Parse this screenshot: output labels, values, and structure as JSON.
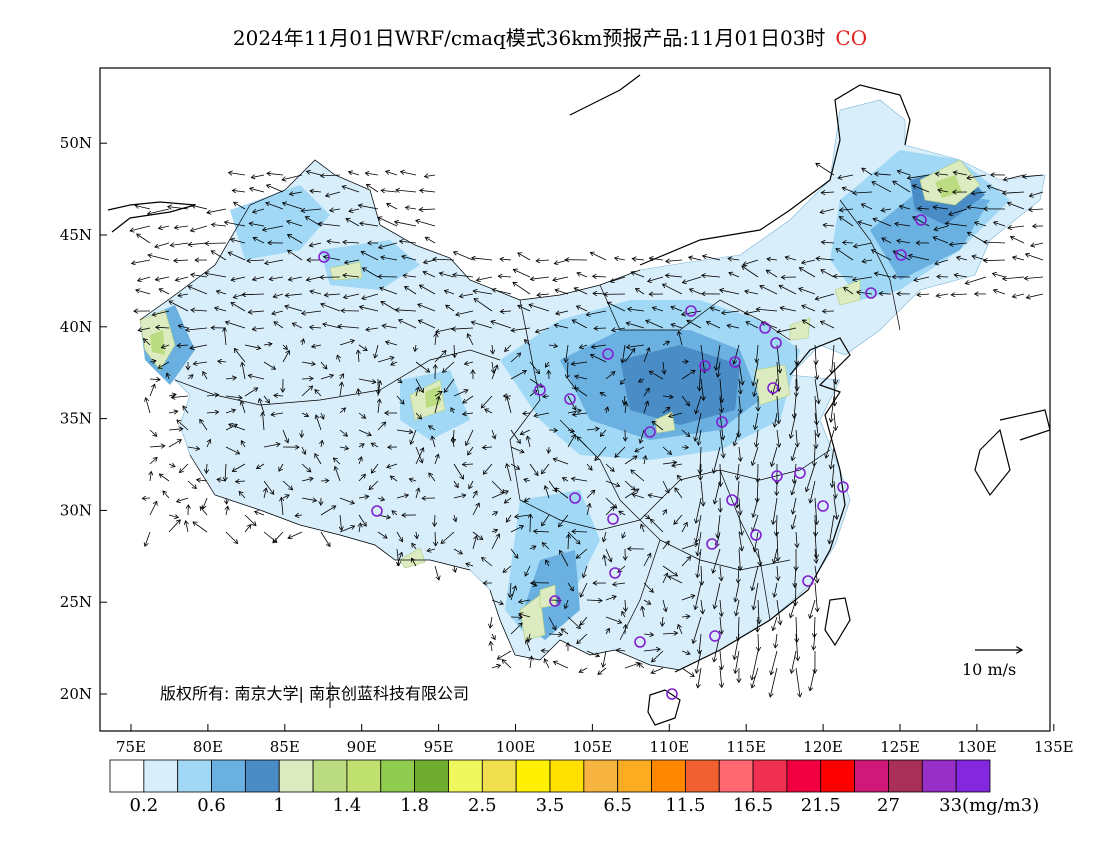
{
  "title": {
    "text": "2024年11月01日WRF/cmaq模式36km预报产品:11月01日03时",
    "species": "CO"
  },
  "map": {
    "lon_range": [
      73,
      135
    ],
    "lat_range": [
      18,
      54
    ],
    "lon_ticks": [
      "75E",
      "80E",
      "85E",
      "90E",
      "95E",
      "100E",
      "105E",
      "110E",
      "115E",
      "120E",
      "125E",
      "130E",
      "135E"
    ],
    "lat_ticks": [
      "20N",
      "25N",
      "30N",
      "35N",
      "40N",
      "45N",
      "50N"
    ],
    "copyright": "版权所有: 南京大学| 南京创蓝科技有限公司",
    "wind_scale_label": "10 m/s",
    "station_color": "#8020d0"
  },
  "colorbar": {
    "colors": [
      "#ffffff",
      "#d8eefa",
      "#a0d8f6",
      "#6ab0e0",
      "#4a8cc6",
      "#dcecc0",
      "#bcdc82",
      "#c0e070",
      "#90cc50",
      "#70ac30",
      "#f0f860",
      "#f0e050",
      "#fff000",
      "#ffe000",
      "#f8b440",
      "#fcac20",
      "#ff8800",
      "#f06030",
      "#ff6870",
      "#f03050",
      "#f00040",
      "#ff0000",
      "#d01878",
      "#a83058",
      "#9830c8",
      "#8428e0"
    ],
    "labels": [
      "0.2",
      "0.6",
      "1",
      "1.4",
      "1.8",
      "2.5",
      "3.5",
      "6.5",
      "11.5",
      "16.5",
      "21.5",
      "27",
      "33(mg/m3)"
    ]
  }
}
